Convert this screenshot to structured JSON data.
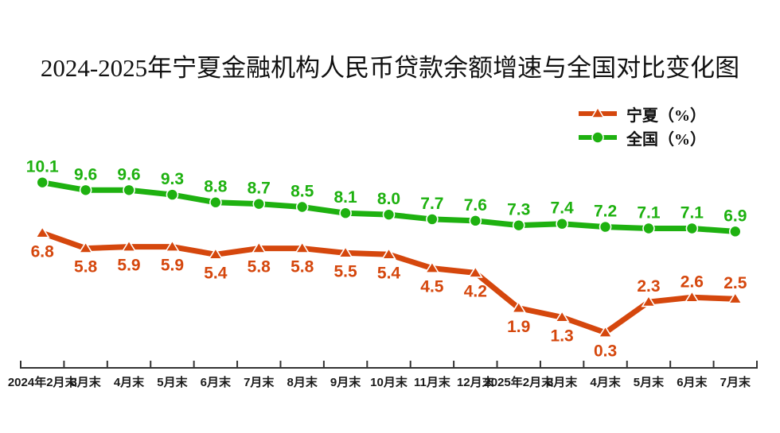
{
  "title": "2024-2025年宁夏金融机构人民币贷款余额增速与全国对比变化图",
  "chart_data": {
    "type": "line",
    "categories": [
      "2024年2月末",
      "3月末",
      "4月末",
      "5月末",
      "6月末",
      "7月末",
      "8月末",
      "9月末",
      "10月末",
      "11月末",
      "12月末",
      "2025年2月末",
      "3月末",
      "4月末",
      "5月末",
      "6月末",
      "7月末"
    ],
    "series": [
      {
        "id": "ningxia",
        "name": "宁夏（%）",
        "color": "#d5470d",
        "marker": "triangle",
        "values": [
          6.8,
          5.8,
          5.9,
          5.9,
          5.4,
          5.8,
          5.8,
          5.5,
          5.4,
          4.5,
          4.2,
          1.9,
          1.3,
          0.3,
          2.3,
          2.6,
          2.5
        ],
        "label_side": [
          "below",
          "below",
          "below",
          "below",
          "below",
          "below",
          "below",
          "below",
          "below",
          "below",
          "below",
          "below",
          "below",
          "below",
          "above",
          "above",
          "above"
        ]
      },
      {
        "id": "national",
        "name": "全国（%）",
        "color": "#1eb110",
        "marker": "circle",
        "values": [
          10.1,
          9.6,
          9.6,
          9.3,
          8.8,
          8.7,
          8.5,
          8.1,
          8.0,
          7.7,
          7.6,
          7.3,
          7.4,
          7.2,
          7.1,
          7.1,
          6.9
        ],
        "label_side": "above"
      }
    ],
    "ylim": [
      -2,
      12
    ],
    "grid": false,
    "legend_position": "top-right",
    "xlabel": "",
    "ylabel": "",
    "axis_color": "#333333"
  }
}
